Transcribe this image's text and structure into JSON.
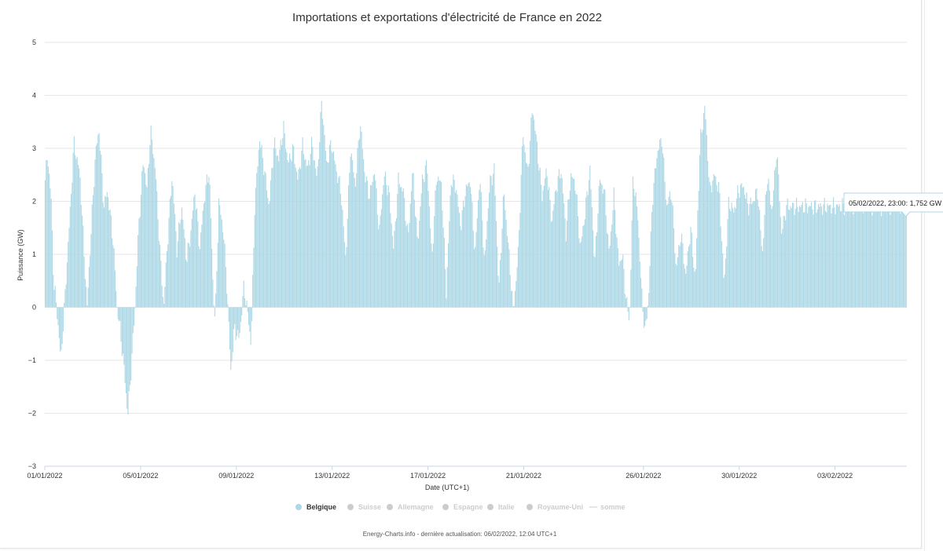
{
  "chart_data": {
    "type": "bar",
    "title": "Importations et exportations d'électricité de France en 2022",
    "xlabel": "Date (UTC+1)",
    "ylabel": "Puissance (GW)",
    "ylim": [
      -3,
      5
    ],
    "y_ticks": [
      "−3",
      "−2",
      "−1",
      "0",
      "1",
      "2",
      "3",
      "4",
      "5"
    ],
    "x_ticks": [
      "01/01/2022",
      "05/01/2022",
      "09/01/2022",
      "13/01/2022",
      "17/01/2022",
      "21/01/2022",
      "26/01/2022",
      "30/01/2022",
      "03/02/2022"
    ],
    "x_tick_days": [
      0,
      4,
      8,
      12,
      16,
      20,
      25,
      29,
      33
    ],
    "x_range_days": [
      0,
      36
    ],
    "bar_color": "#add8e6",
    "grid": true,
    "legend_position": "bottom-center",
    "series": [
      {
        "name": "Belgique",
        "visible": true,
        "color": "#add8e6",
        "keyframes_day_value": [
          [
            0.0,
            2.4
          ],
          [
            0.1,
            2.9
          ],
          [
            0.25,
            2.0
          ],
          [
            0.35,
            0.5
          ],
          [
            0.5,
            -0.1
          ],
          [
            0.65,
            -1.0
          ],
          [
            0.8,
            0.0
          ],
          [
            1.0,
            1.5
          ],
          [
            1.2,
            3.1
          ],
          [
            1.45,
            2.5
          ],
          [
            1.65,
            0.8
          ],
          [
            1.75,
            0.0
          ],
          [
            1.9,
            1.3
          ],
          [
            2.1,
            2.9
          ],
          [
            2.25,
            3.35
          ],
          [
            2.45,
            1.9
          ],
          [
            2.6,
            2.2
          ],
          [
            2.85,
            1.2
          ],
          [
            3.0,
            0.0
          ],
          [
            3.15,
            -0.5
          ],
          [
            3.3,
            -1.2
          ],
          [
            3.45,
            -2.05
          ],
          [
            3.6,
            -1.1
          ],
          [
            3.75,
            0.0
          ],
          [
            3.9,
            1.5
          ],
          [
            4.1,
            2.8
          ],
          [
            4.25,
            2.2
          ],
          [
            4.4,
            3.35
          ],
          [
            4.6,
            2.6
          ],
          [
            4.8,
            1.0
          ],
          [
            4.95,
            0.0
          ],
          [
            5.1,
            1.2
          ],
          [
            5.3,
            2.5
          ],
          [
            5.5,
            1.1
          ],
          [
            5.7,
            1.9
          ],
          [
            5.9,
            0.9
          ],
          [
            6.05,
            1.3
          ],
          [
            6.25,
            2.2
          ],
          [
            6.45,
            1.1
          ],
          [
            6.65,
            2.1
          ],
          [
            6.85,
            2.6
          ],
          [
            7.0,
            0.5
          ],
          [
            7.1,
            -0.3
          ],
          [
            7.25,
            2.0
          ],
          [
            7.45,
            1.4
          ],
          [
            7.6,
            0.3
          ],
          [
            7.75,
            -1.2
          ],
          [
            7.9,
            -0.4
          ],
          [
            8.1,
            -0.6
          ],
          [
            8.3,
            0.4
          ],
          [
            8.45,
            -0.1
          ],
          [
            8.6,
            -0.7
          ],
          [
            8.75,
            1.9
          ],
          [
            8.95,
            3.2
          ],
          [
            9.15,
            2.6
          ],
          [
            9.35,
            1.9
          ],
          [
            9.55,
            3.1
          ],
          [
            9.75,
            2.8
          ],
          [
            9.95,
            3.4
          ],
          [
            10.15,
            2.7
          ],
          [
            10.35,
            3.0
          ],
          [
            10.55,
            2.4
          ],
          [
            10.75,
            3.05
          ],
          [
            10.95,
            2.6
          ],
          [
            11.15,
            3.1
          ],
          [
            11.35,
            2.4
          ],
          [
            11.55,
            3.9
          ],
          [
            11.75,
            2.7
          ],
          [
            11.95,
            3.1
          ],
          [
            12.15,
            2.6
          ],
          [
            12.35,
            2.2
          ],
          [
            12.55,
            0.9
          ],
          [
            12.75,
            3.0
          ],
          [
            12.95,
            2.3
          ],
          [
            13.15,
            3.5
          ],
          [
            13.35,
            2.5
          ],
          [
            13.55,
            2.1
          ],
          [
            13.75,
            2.6
          ],
          [
            13.95,
            1.4
          ],
          [
            14.15,
            2.5
          ],
          [
            14.35,
            2.2
          ],
          [
            14.55,
            1.1
          ],
          [
            14.75,
            2.4
          ],
          [
            14.95,
            2.2
          ],
          [
            15.15,
            1.3
          ],
          [
            15.35,
            2.6
          ],
          [
            15.55,
            1.2
          ],
          [
            15.75,
            2.4
          ],
          [
            15.95,
            2.7
          ],
          [
            16.15,
            0.9
          ],
          [
            16.35,
            2.5
          ],
          [
            16.55,
            2.3
          ],
          [
            16.75,
            0.3
          ],
          [
            16.95,
            2.4
          ],
          [
            17.15,
            2.3
          ],
          [
            17.35,
            1.5
          ],
          [
            17.55,
            2.2
          ],
          [
            17.75,
            2.4
          ],
          [
            17.95,
            1.0
          ],
          [
            18.15,
            2.5
          ],
          [
            18.35,
            0.8
          ],
          [
            18.55,
            2.3
          ],
          [
            18.75,
            2.6
          ],
          [
            18.95,
            0.3
          ],
          [
            19.15,
            2.2
          ],
          [
            19.35,
            1.1
          ],
          [
            19.55,
            -0.1
          ],
          [
            19.75,
            1.0
          ],
          [
            19.95,
            3.3
          ],
          [
            20.15,
            2.5
          ],
          [
            20.35,
            3.8
          ],
          [
            20.55,
            3.0
          ],
          [
            20.75,
            2.1
          ],
          [
            20.95,
            2.6
          ],
          [
            21.15,
            1.6
          ],
          [
            21.35,
            2.3
          ],
          [
            21.55,
            2.6
          ],
          [
            21.75,
            1.4
          ],
          [
            21.95,
            2.5
          ],
          [
            22.15,
            2.3
          ],
          [
            22.35,
            1.1
          ],
          [
            22.55,
            1.8
          ],
          [
            22.75,
            2.6
          ],
          [
            22.95,
            0.8
          ],
          [
            23.15,
            2.4
          ],
          [
            23.35,
            2.2
          ],
          [
            23.55,
            1.0
          ],
          [
            23.75,
            2.1
          ],
          [
            23.95,
            0.8
          ],
          [
            24.1,
            1.0
          ],
          [
            24.25,
            0.2
          ],
          [
            24.4,
            -0.3
          ],
          [
            24.55,
            2.5
          ],
          [
            24.75,
            1.7
          ],
          [
            24.9,
            0.3
          ],
          [
            25.05,
            -0.5
          ],
          [
            25.2,
            0.2
          ],
          [
            25.35,
            2.0
          ],
          [
            25.55,
            2.9
          ],
          [
            25.75,
            3.2
          ],
          [
            25.95,
            1.9
          ],
          [
            26.15,
            2.2
          ],
          [
            26.35,
            0.7
          ],
          [
            26.55,
            1.4
          ],
          [
            26.75,
            0.6
          ],
          [
            26.95,
            1.5
          ],
          [
            27.15,
            0.5
          ],
          [
            27.35,
            3.1
          ],
          [
            27.55,
            3.8
          ],
          [
            27.75,
            2.2
          ],
          [
            27.95,
            2.5
          ],
          [
            28.15,
            2.2
          ],
          [
            28.35,
            0.4
          ],
          [
            28.55,
            2.0
          ],
          [
            28.75,
            1.8
          ],
          [
            28.95,
            2.2
          ],
          [
            29.15,
            2.3
          ],
          [
            29.35,
            1.9
          ],
          [
            29.55,
            2.0
          ],
          [
            29.75,
            2.2
          ],
          [
            29.95,
            1.0
          ],
          [
            30.15,
            2.5
          ],
          [
            30.35,
            1.8
          ],
          [
            30.55,
            3.0
          ],
          [
            30.75,
            1.4
          ],
          [
            30.95,
            1.9
          ]
        ]
      },
      {
        "name": "Suisse",
        "visible": false
      },
      {
        "name": "Allemagne",
        "visible": false
      },
      {
        "name": "Espagne",
        "visible": false
      },
      {
        "name": "Italie",
        "visible": false
      },
      {
        "name": "Royaume-Uni",
        "visible": false
      },
      {
        "name": "somme",
        "visible": false,
        "marker": "line"
      }
    ],
    "tooltip": {
      "text": "05/02/2022, 23:00: 1,752 GW",
      "day": 35.96,
      "value": 1.752,
      "border_color": "#add8e6"
    },
    "credit": "Energy-Charts.info - dernière actualisation: 06/02/2022, 12:04 UTC+1"
  }
}
